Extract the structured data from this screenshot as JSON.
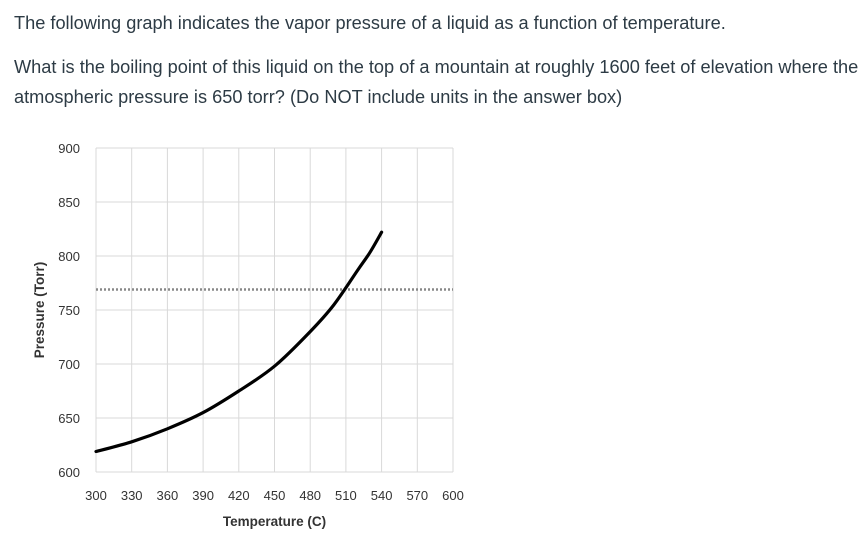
{
  "question": {
    "line1": "The following graph indicates the vapor pressure of a liquid as a function of temperature.",
    "line2": "What is the boiling point of this liquid on the top of a mountain at roughly 1600 feet of elevation where the atmospheric pressure is 650 torr? (Do NOT include units in the answer box)"
  },
  "chart_data": {
    "type": "line",
    "xlabel": "Temperature (C)",
    "ylabel": "Pressure (Torr)",
    "xlim": [
      300,
      600
    ],
    "ylim": [
      600,
      900
    ],
    "x_ticks": [
      300,
      330,
      360,
      390,
      420,
      450,
      480,
      510,
      540,
      570,
      600
    ],
    "y_ticks": [
      600,
      650,
      700,
      750,
      800,
      850,
      900
    ],
    "grid": true,
    "legend": "none",
    "series": [
      {
        "x": [
          300,
          330,
          360,
          390,
          420,
          450,
          480,
          500,
          520,
          530,
          540
        ],
        "y": [
          619,
          628,
          640,
          655,
          675,
          698,
          730,
          755,
          787,
          803,
          822
        ],
        "color": "#000000",
        "style": "solid"
      }
    ],
    "reference_lines": [
      {
        "orientation": "horizontal",
        "y": 769,
        "x_range": [
          300,
          600
        ],
        "color": "#888888",
        "style": "dotted"
      }
    ]
  }
}
